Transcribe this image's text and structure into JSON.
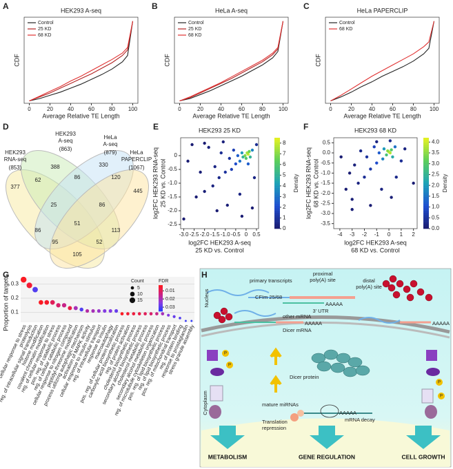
{
  "panel_labels": [
    "A",
    "B",
    "C",
    "D",
    "E",
    "F",
    "G",
    "H"
  ],
  "chart_data": [
    {
      "type": "line",
      "title": "HEK293 A-seq",
      "xlabel": "Average Relative TE Length",
      "ylabel": "CDF",
      "xlim": [
        -5,
        105
      ],
      "ylim": [
        -0.03,
        1.05
      ],
      "xticks": [
        0,
        20,
        40,
        60,
        80,
        100
      ],
      "legend": "upper left",
      "x": [
        0,
        10,
        20,
        30,
        40,
        50,
        60,
        70,
        80,
        90,
        95,
        100
      ],
      "series": [
        {
          "name": "Control",
          "color": "#222222",
          "values": [
            0,
            0.03,
            0.07,
            0.11,
            0.16,
            0.21,
            0.27,
            0.33,
            0.4,
            0.49,
            0.57,
            1
          ]
        },
        {
          "name": "25 KD",
          "color": "#b22222",
          "values": [
            0,
            0.05,
            0.1,
            0.16,
            0.22,
            0.28,
            0.34,
            0.41,
            0.48,
            0.57,
            0.64,
            1
          ]
        },
        {
          "name": "68 KD",
          "color": "#e03030",
          "values": [
            0,
            0.06,
            0.12,
            0.18,
            0.25,
            0.31,
            0.38,
            0.45,
            0.52,
            0.6,
            0.67,
            1
          ]
        }
      ]
    },
    {
      "type": "line",
      "title": "HeLa A-seq",
      "xlabel": "Average Relative TE Length",
      "ylabel": "CDF",
      "xlim": [
        -5,
        105
      ],
      "ylim": [
        -0.03,
        1.05
      ],
      "xticks": [
        0,
        20,
        40,
        60,
        80,
        100
      ],
      "legend": "upper left",
      "x": [
        0,
        10,
        20,
        30,
        40,
        50,
        60,
        70,
        80,
        90,
        95,
        100
      ],
      "series": [
        {
          "name": "Control",
          "color": "#222222",
          "values": [
            0,
            0.03,
            0.08,
            0.13,
            0.19,
            0.25,
            0.31,
            0.38,
            0.45,
            0.54,
            0.62,
            1
          ]
        },
        {
          "name": "25 KD",
          "color": "#b22222",
          "values": [
            0,
            0.04,
            0.1,
            0.16,
            0.22,
            0.28,
            0.35,
            0.42,
            0.49,
            0.58,
            0.65,
            1
          ]
        },
        {
          "name": "68 KD",
          "color": "#e03030",
          "values": [
            0,
            0.05,
            0.11,
            0.17,
            0.23,
            0.3,
            0.37,
            0.44,
            0.51,
            0.6,
            0.67,
            1
          ]
        }
      ]
    },
    {
      "type": "line",
      "title": "HeLa PAPERCLIP",
      "xlabel": "Average Relative TE Length",
      "ylabel": "CDF",
      "xlim": [
        -5,
        105
      ],
      "ylim": [
        -0.03,
        1.05
      ],
      "xticks": [
        0,
        20,
        40,
        60,
        80,
        100
      ],
      "legend": "upper left",
      "x": [
        0,
        10,
        20,
        30,
        40,
        50,
        60,
        70,
        80,
        90,
        95,
        100
      ],
      "series": [
        {
          "name": "Control",
          "color": "#222222",
          "values": [
            0,
            0.05,
            0.11,
            0.18,
            0.24,
            0.31,
            0.37,
            0.43,
            0.5,
            0.59,
            0.66,
            1
          ]
        },
        {
          "name": "68 KD",
          "color": "#e03030",
          "values": [
            0,
            0.07,
            0.15,
            0.23,
            0.31,
            0.38,
            0.45,
            0.52,
            0.59,
            0.68,
            0.74,
            1
          ]
        }
      ]
    },
    {
      "type": "scatter",
      "title": "HEK293 25 KD",
      "xlabel": [
        "log2FC HEK293 A-seq",
        "25 KD vs. Control"
      ],
      "ylabel": [
        "log2FC HEK293 RNA-seq",
        "25 KD vs. Control"
      ],
      "xlim": [
        -3.15,
        0.6
      ],
      "ylim": [
        -2.65,
        0.65
      ],
      "xticks": [
        {
          "value": -3,
          "label": "-3.0"
        },
        -2.5,
        {
          "value": -2,
          "label": "-2.0"
        },
        -1.5,
        {
          "value": -1,
          "label": "-1.0"
        },
        -0.5,
        0,
        0.5
      ],
      "yticks": [
        0,
        -0.5,
        {
          "value": -1,
          "label": "-1.0"
        },
        -1.5,
        {
          "value": -2,
          "label": "-2.0"
        },
        -2.5
      ],
      "colorbar_label": "Density",
      "clim": [
        0,
        8.5
      ],
      "cticks": [
        0,
        1,
        2,
        3,
        4,
        5,
        6,
        7,
        8
      ],
      "colormap": [
        "#1a1a6e",
        "#1f4fd1",
        "#1ea3b8",
        "#5ccf5a",
        "#e8f221"
      ],
      "x": [
        0.1,
        0.05,
        -0.05,
        0.15,
        0,
        -0.15,
        0.2,
        -0.2,
        0.3,
        -0.3,
        -0.4,
        0.1,
        -0.5,
        -0.6,
        -0.7,
        -0.8,
        -1.0,
        -1.2,
        -1.3,
        -1.5,
        -1.6,
        -1.8,
        -2.0,
        -2.2,
        -2.4,
        -2.8,
        -3.0,
        -0.9,
        -0.3,
        0.4,
        0.5,
        -1.1,
        -2.6,
        -0.2,
        -1.4,
        0.3,
        -2.0
      ],
      "values": [
        0.05,
        0.1,
        0,
        0.15,
        -0.1,
        -0.05,
        -0.05,
        0.1,
        0.2,
        -0.2,
        0,
        -0.3,
        -0.3,
        0.2,
        -0.5,
        -0.1,
        -0.6,
        0.1,
        -0.8,
        -0.4,
        -1.1,
        0.3,
        -1.3,
        -0.6,
        -1.5,
        -0.2,
        -2.3,
        -1.8,
        -1.4,
        -0.8,
        0.4,
        0.5,
        0.4,
        -2.2,
        -2.0,
        -1.9,
        0.45
      ],
      "density": [
        8,
        7.5,
        7,
        6.5,
        6,
        5,
        5,
        4,
        3.5,
        3,
        2.5,
        2.5,
        2,
        1.5,
        1.5,
        1,
        1,
        0.8,
        0.6,
        0.5,
        0.4,
        0.3,
        0.2,
        0.2,
        0.1,
        0.1,
        0.05,
        0.2,
        0.4,
        0.5,
        0.8,
        0.3,
        0.1,
        0.1,
        0.1,
        0.1,
        0.1
      ]
    },
    {
      "type": "scatter",
      "title": "HEK293 68 KD",
      "xlabel": [
        "log2FC HEK293 A-seq",
        "68 KD vs. Control"
      ],
      "ylabel": [
        "log2FC HEK293 RNA-seq",
        "68 KD vs. Control"
      ],
      "xlim": [
        -4.5,
        2.3
      ],
      "ylim": [
        -3.75,
        0.75
      ],
      "xticks": [
        -4,
        -3,
        -2,
        -1,
        0,
        1,
        2
      ],
      "yticks": [
        0.5,
        {
          "value": 0,
          "label": "0.0"
        },
        -0.5,
        {
          "value": -1,
          "label": "-1.0"
        },
        -1.5,
        {
          "value": -2,
          "label": "-2.0"
        },
        -2.5,
        {
          "value": -3,
          "label": "-3.0"
        },
        -3.5
      ],
      "colorbar_label": "Density",
      "clim": [
        0,
        4.2
      ],
      "cticks": [
        {
          "value": 0,
          "label": "0.0"
        },
        0.5,
        {
          "value": 1,
          "label": "1.0"
        },
        1.5,
        {
          "value": 2,
          "label": "2.0"
        },
        2.5,
        {
          "value": 3,
          "label": "3.0"
        },
        3.5,
        {
          "value": 4,
          "label": "4.0"
        }
      ],
      "colormap": [
        "#1a1a6e",
        "#1f4fd1",
        "#1ea3b8",
        "#5ccf5a",
        "#e8f221"
      ],
      "x": [
        0,
        0.1,
        -0.1,
        0.2,
        -0.2,
        0.3,
        -0.4,
        -0.5,
        0.5,
        -0.8,
        -1.0,
        -1.2,
        -1.5,
        -1.8,
        -2.0,
        -2.3,
        -2.5,
        -2.8,
        -3.0,
        -3.0,
        -3.2,
        -3.9,
        1.0,
        1.3,
        2.0,
        0.6,
        -0.6,
        0.2,
        -1.5,
        -1.0,
        0.1,
        -3.5
      ],
      "values": [
        0.05,
        0,
        0.1,
        0.15,
        -0.1,
        -0.2,
        0.2,
        -0.3,
        0.3,
        0,
        -0.5,
        0.3,
        -0.8,
        -0.2,
        -1.2,
        0.1,
        -1.5,
        -0.6,
        -2.3,
        -2.8,
        -1.0,
        -0.2,
        -0.4,
        0.2,
        -1.5,
        -1.2,
        -1.8,
        -2.2,
        -2.6,
        0.55,
        0.6,
        -1.8
      ],
      "density": [
        4,
        3.8,
        3.5,
        3,
        2.8,
        2.3,
        2,
        1.7,
        1.5,
        1.2,
        1,
        0.8,
        0.6,
        0.5,
        0.4,
        0.3,
        0.2,
        0.15,
        0.1,
        0.1,
        0.05,
        0.05,
        0.4,
        0.2,
        0.05,
        0.3,
        0.2,
        0.1,
        0.05,
        0.2,
        0.3,
        0.05
      ]
    },
    {
      "type": "dot",
      "ylabel": "Proportion of targets",
      "ylim": [
        0.03,
        0.35
      ],
      "yticks": [
        0.1,
        0.2,
        0.3
      ],
      "grid": true,
      "size_title": "Count",
      "size_ticks": [
        5,
        10,
        15
      ],
      "color_title": "FDR",
      "clim": [
        0.003,
        0.035
      ],
      "cticks": [
        0.01,
        0.02,
        0.03
      ],
      "colormap": [
        "#ff1a1a",
        "#d0207a",
        "#8a3be0",
        "#2040ff"
      ],
      "categories": [
        "cellular response to stress",
        "proteolysis",
        "reg. of intracellular signal transduction",
        "histone modification",
        "covalent chromatin modification",
        "reg. of cellular response to stress",
        "pos. reg. of catabolic process",
        "reg. of cellular catabolic process",
        "cellular response to nitrogen compound",
        "peptidyl-threonine modification",
        "process utilizing autophagic mechanism",
        "activation of MAPK activity",
        "cellular response to insulin stimulus",
        "reg. of intracellular transport",
        "response to insulin",
        "macroautophagy",
        "pos. reg. of cellular protein localization",
        "carboxylic acid biosynthetic process",
        "reg. of protein activation",
        "cholesterol biosynthetic process",
        "secondary alcohol biosynthetic process",
        "cholesterol metabolic process",
        "secondary alcohol metabolic process",
        "reg. of microtubule cytoskeleton organization",
        "pos. reg. of lipid biosynthetic process",
        "reg. of lipid biosynthetic process",
        "pos. reg. of mitochondrial transport",
        "reg. of protein binding",
        "response to prostaglandin",
        "stress granule assembly"
      ],
      "values": [
        0.33,
        0.29,
        0.26,
        0.17,
        0.17,
        0.17,
        0.15,
        0.15,
        0.13,
        0.13,
        0.12,
        0.11,
        0.11,
        0.11,
        0.11,
        0.11,
        0.11,
        0.09,
        0.09,
        0.09,
        0.09,
        0.09,
        0.09,
        0.09,
        0.09,
        0.08,
        0.07,
        0.06,
        0.04,
        0.04
      ],
      "counts": [
        16,
        15,
        14,
        10,
        10,
        10,
        9,
        9,
        8,
        8,
        7,
        6,
        6,
        6,
        6,
        6,
        6,
        5,
        5,
        5,
        5,
        5,
        5,
        5,
        5,
        4,
        4,
        3,
        2,
        2
      ],
      "fdr": [
        0.004,
        0.006,
        0.03,
        0.004,
        0.005,
        0.01,
        0.012,
        0.015,
        0.008,
        0.02,
        0.03,
        0.018,
        0.02,
        0.022,
        0.025,
        0.025,
        0.028,
        0.004,
        0.006,
        0.007,
        0.008,
        0.01,
        0.012,
        0.015,
        0.02,
        0.025,
        0.028,
        0.03,
        0.032,
        0.033
      ]
    }
  ],
  "venn": {
    "sets": [
      {
        "lines": [
          "HEK293",
          "RNA-seq"
        ],
        "count": "(853)"
      },
      {
        "lines": [
          "HEK293",
          "A-seq"
        ],
        "count": "(863)"
      },
      {
        "lines": [
          "HeLa",
          "A-seq"
        ],
        "count": "(879)"
      },
      {
        "lines": [
          "HeLa",
          "PAPERCLIP"
        ],
        "count": "(1067)"
      }
    ],
    "regions": [
      377,
      388,
      330,
      445,
      62,
      86,
      120,
      25,
      86,
      51,
      86,
      113,
      95,
      52,
      105
    ]
  },
  "diagram": {
    "nucleus": "Nucleus",
    "cytoplasm": "Cytoplasm",
    "primary": "primary transcripts",
    "proximal": [
      "proximal",
      "poly(A) site"
    ],
    "distal": [
      "distal",
      "poly(A) site"
    ],
    "cfim": "CFIm 25/68",
    "utr": "3' UTR",
    "polya": "AAAAA",
    "other": "other mRNA",
    "dicer_mrna": "Dicer mRNA",
    "dicer_protein": "Dicer protein",
    "mirna": "mature miRNAs",
    "repression": [
      "Translation",
      "repression"
    ],
    "decay": "mRNA decay",
    "p": "P",
    "outcomes": [
      "METABOLISM",
      "GENE REGULATION",
      "CELL GROWTH"
    ]
  }
}
